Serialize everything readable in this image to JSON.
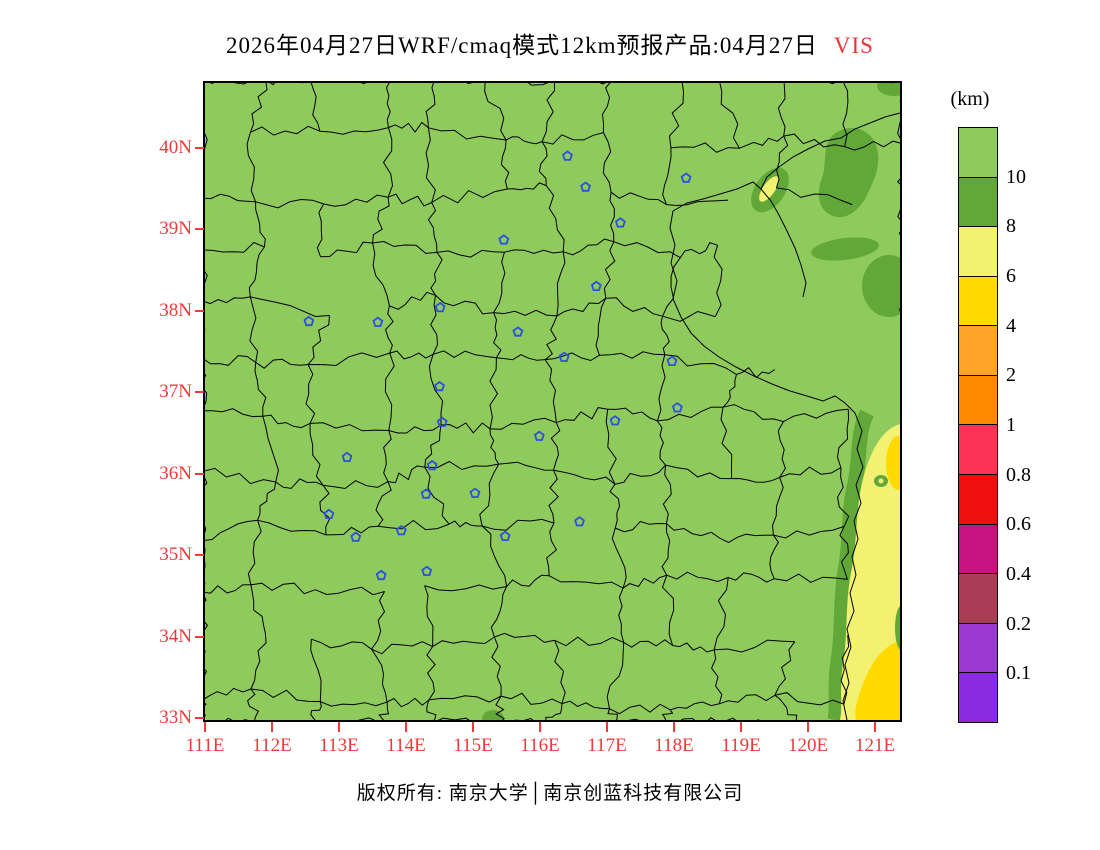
{
  "title": {
    "text": "2026年04月27日WRF/cmaq模式12km预报产品:04月27日",
    "variable": "VIS",
    "variable_color": "#e93535"
  },
  "footer": {
    "text": "版权所有: 南京大学│南京创蓝科技有限公司"
  },
  "legend": {
    "unit": "(km)",
    "bands_top_to_bottom": [
      {
        "color": "#8fca5c",
        "boundary_label": "10"
      },
      {
        "color": "#62a838",
        "boundary_label": "8"
      },
      {
        "color": "#f2f172",
        "boundary_label": "6"
      },
      {
        "color": "#ffda00",
        "boundary_label": "4"
      },
      {
        "color": "#ffa428",
        "boundary_label": "2"
      },
      {
        "color": "#ff8a00",
        "boundary_label": "1"
      },
      {
        "color": "#fa3357",
        "boundary_label": "0.8"
      },
      {
        "color": "#ef0f0f",
        "boundary_label": "0.6"
      },
      {
        "color": "#c6137f",
        "boundary_label": "0.4"
      },
      {
        "color": "#a93d56",
        "boundary_label": "0.2"
      },
      {
        "color": "#9939cf",
        "boundary_label": "0.1"
      },
      {
        "color": "#8a2be2",
        "boundary_label": ""
      }
    ]
  },
  "axes": {
    "label_color": "#f03a3a",
    "lat_ticks": [
      "40N",
      "39N",
      "38N",
      "37N",
      "36N",
      "35N",
      "34N",
      "33N"
    ],
    "lon_ticks": [
      "111E",
      "112E",
      "113E",
      "114E",
      "115E",
      "116E",
      "117E",
      "118E",
      "119E",
      "120E",
      "121E"
    ]
  },
  "map_style": {
    "background_color": "#8fca5c",
    "reduced_band_green": "#62a838",
    "pale_yellow": "#f2f172",
    "deep_yellow": "#ffda00",
    "boundary_color": "#000000",
    "marker_color": "#2b4fe0",
    "marker_shape": "pentagon-outline"
  },
  "chart_data": {
    "type": "heatmap",
    "title": "2026年04月27日WRF/cmaq模式12km预报产品:04月27日 VIS",
    "variable": "VIS",
    "unit": "km",
    "xlabel_ticks": [
      "111E",
      "112E",
      "113E",
      "114E",
      "115E",
      "116E",
      "117E",
      "118E",
      "119E",
      "120E",
      "121E"
    ],
    "ylabel_ticks": [
      "40N",
      "39N",
      "38N",
      "37N",
      "36N",
      "35N",
      "34N",
      "33N"
    ],
    "x_range_deg_east": [
      111,
      121.4
    ],
    "y_range_deg_north": [
      33,
      40.8
    ],
    "color_levels_km": [
      0.1,
      0.2,
      0.4,
      0.6,
      0.8,
      1,
      2,
      4,
      6,
      8,
      10
    ],
    "legend_position": "right",
    "field_regions": [
      {
        "area": "most of the domain",
        "visibility_km": ">10"
      },
      {
        "area": "patches 120.2-121.4E, 38.5-40.8N (northeast)",
        "visibility_km": "8-10"
      },
      {
        "area": "small spot near 119.4E, 39.6N with 6-8 km core",
        "visibility_km": "6-10"
      },
      {
        "area": "coastal strip 120.6-121.4E, 33-37.9N (southeast edge)",
        "visibility_km": "6-10"
      },
      {
        "area": "cores near 121.3E, 36.3-36.9N and 120.8-121.4E, 33-34N",
        "visibility_km": "4-6"
      },
      {
        "area": "small blob near 115.3E, 33.0-33.2N (bottom edge)",
        "visibility_km": "8-10"
      },
      {
        "area": "speck near 121.1E, 35.9N",
        "visibility_km": "6-8"
      }
    ],
    "station_markers_lon_lat": [
      [
        116.41,
        39.9
      ],
      [
        117.2,
        39.08
      ],
      [
        114.51,
        38.04
      ],
      [
        118.18,
        39.63
      ],
      [
        116.68,
        39.52
      ],
      [
        115.46,
        38.87
      ],
      [
        116.84,
        38.3
      ],
      [
        115.67,
        37.74
      ],
      [
        114.5,
        37.07
      ],
      [
        114.54,
        36.63
      ],
      [
        112.55,
        37.87
      ],
      [
        113.58,
        37.86
      ],
      [
        113.12,
        36.2
      ],
      [
        112.85,
        35.5
      ],
      [
        117.12,
        36.65
      ],
      [
        118.05,
        36.81
      ],
      [
        116.59,
        35.41
      ],
      [
        116.36,
        37.43
      ],
      [
        115.99,
        36.46
      ],
      [
        117.97,
        37.38
      ],
      [
        115.48,
        35.23
      ],
      [
        113.63,
        34.75
      ],
      [
        114.31,
        34.8
      ],
      [
        114.39,
        36.1
      ],
      [
        114.3,
        35.75
      ],
      [
        113.93,
        35.3
      ],
      [
        113.25,
        35.22
      ],
      [
        115.03,
        35.76
      ]
    ]
  }
}
